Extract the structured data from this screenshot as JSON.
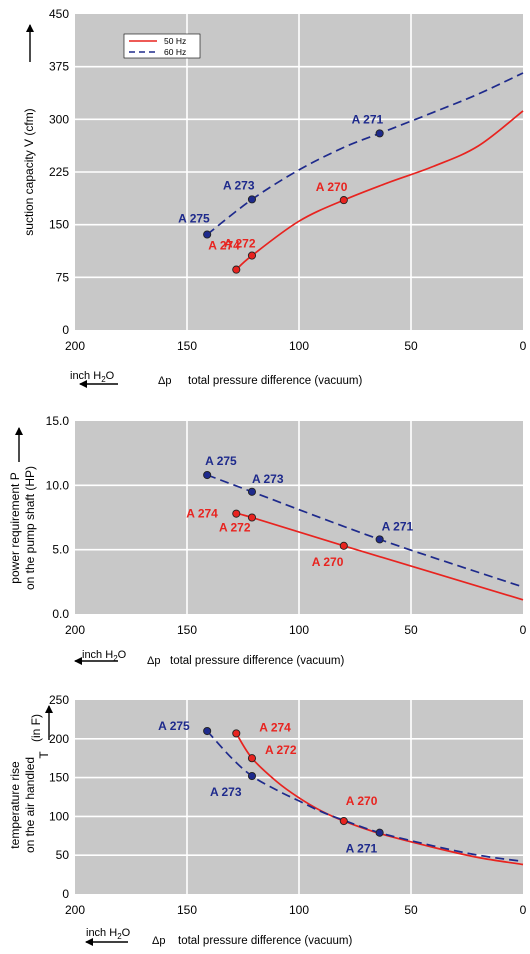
{
  "colors": {
    "c50": "#e8231f",
    "c60": "#1e2a8c",
    "plot_bg": "#c8c8c8",
    "grid": "#ffffff"
  },
  "chart_data": [
    {
      "type": "line",
      "ylabel": "suction capacity V (cfm)",
      "xlabel": "total pressure difference (vacuum)",
      "xsymbol": "Δp",
      "unit_main": "inch H",
      "unit_sub": "2",
      "unit_tail": "O",
      "xlim": [
        200,
        0
      ],
      "ylim": [
        0,
        450
      ],
      "xticks": [
        "200",
        "150",
        "100",
        "50",
        "0"
      ],
      "yticks": [
        "0",
        "75",
        "150",
        "225",
        "300",
        "375",
        "450"
      ],
      "grid": true,
      "legend": {
        "placement": "top-left",
        "entries": [
          "50 Hz",
          "60 Hz"
        ]
      },
      "series": [
        {
          "name": "50 Hz",
          "x": [
            128,
            121,
            100,
            80,
            60,
            40,
            20,
            0
          ],
          "y": [
            86,
            106,
            155,
            185,
            210,
            233,
            262,
            312
          ],
          "markers": [
            {
              "label": "A 274",
              "x": 128,
              "y": 86
            },
            {
              "label": "A 272",
              "x": 121,
              "y": 106
            },
            {
              "label": "A 270",
              "x": 80,
              "y": 185
            }
          ]
        },
        {
          "name": "60 Hz",
          "x": [
            141,
            121,
            100,
            80,
            64,
            40,
            20,
            0
          ],
          "y": [
            136,
            186,
            228,
            260,
            280,
            310,
            336,
            366
          ],
          "markers": [
            {
              "label": "A 275",
              "x": 141,
              "y": 136
            },
            {
              "label": "A 273",
              "x": 121,
              "y": 186
            },
            {
              "label": "A 271",
              "x": 64,
              "y": 280
            }
          ]
        }
      ]
    },
    {
      "type": "line",
      "ylabel": "power requirement P on the pump shaft (HP)",
      "ylabel_lines": [
        "power requirement P",
        "on the pump shaft (HP)"
      ],
      "xlabel": "total pressure difference (vacuum)",
      "xsymbol": "Δp",
      "unit_main": "inch H",
      "unit_sub": "2",
      "unit_tail": "O",
      "xlim": [
        200,
        0
      ],
      "ylim": [
        0,
        15
      ],
      "xticks": [
        "200",
        "150",
        "100",
        "50",
        "0"
      ],
      "yticks": [
        "0.0",
        "5.0",
        "10.0",
        "15.0"
      ],
      "grid": true,
      "series": [
        {
          "name": "50 Hz",
          "x": [
            128,
            121,
            80,
            0
          ],
          "y": [
            7.8,
            7.5,
            5.3,
            1.1
          ],
          "markers": [
            {
              "label": "A 274",
              "x": 128,
              "y": 7.8
            },
            {
              "label": "A 272",
              "x": 121,
              "y": 7.5
            },
            {
              "label": "A 270",
              "x": 80,
              "y": 5.3
            }
          ]
        },
        {
          "name": "60 Hz",
          "x": [
            141,
            121,
            64,
            0
          ],
          "y": [
            10.8,
            9.5,
            5.8,
            2.1
          ],
          "markers": [
            {
              "label": "A 275",
              "x": 141,
              "y": 10.8
            },
            {
              "label": "A 273",
              "x": 121,
              "y": 9.5
            },
            {
              "label": "A 271",
              "x": 64,
              "y": 5.8
            }
          ]
        }
      ]
    },
    {
      "type": "line",
      "ylabel": "temperature rise on the air handled T (in F)",
      "ylabel_lines": [
        "temperature rise",
        "on the air handled"
      ],
      "ylabel_symbol": "T",
      "ylabel_unit": "(in F)",
      "xlabel": "total pressure difference (vacuum)",
      "xsymbol": "Δp",
      "unit_main": "inch H",
      "unit_sub": "2",
      "unit_tail": "O",
      "xlim": [
        200,
        0
      ],
      "ylim": [
        0,
        250
      ],
      "xticks": [
        "200",
        "150",
        "100",
        "50",
        "0"
      ],
      "yticks": [
        "0",
        "50",
        "100",
        "150",
        "200",
        "250"
      ],
      "grid": true,
      "series": [
        {
          "name": "50 Hz",
          "x": [
            128,
            121,
            110,
            100,
            90,
            80,
            64,
            40,
            20,
            0
          ],
          "y": [
            207,
            175,
            145,
            124,
            107,
            94,
            78,
            60,
            47,
            38
          ],
          "markers": [
            {
              "label": "A 274",
              "x": 128,
              "y": 207
            },
            {
              "label": "A 272",
              "x": 121,
              "y": 175
            },
            {
              "label": "A 270",
              "x": 80,
              "y": 94
            }
          ]
        },
        {
          "name": "60 Hz",
          "x": [
            141,
            130,
            121,
            110,
            100,
            90,
            80,
            64,
            40,
            20,
            0
          ],
          "y": [
            210,
            175,
            152,
            134,
            120,
            106,
            95,
            79,
            62,
            50,
            42
          ],
          "markers": [
            {
              "label": "A 275",
              "x": 141,
              "y": 210
            },
            {
              "label": "A 273",
              "x": 121,
              "y": 152
            },
            {
              "label": "A 271",
              "x": 64,
              "y": 79
            }
          ]
        }
      ]
    }
  ]
}
